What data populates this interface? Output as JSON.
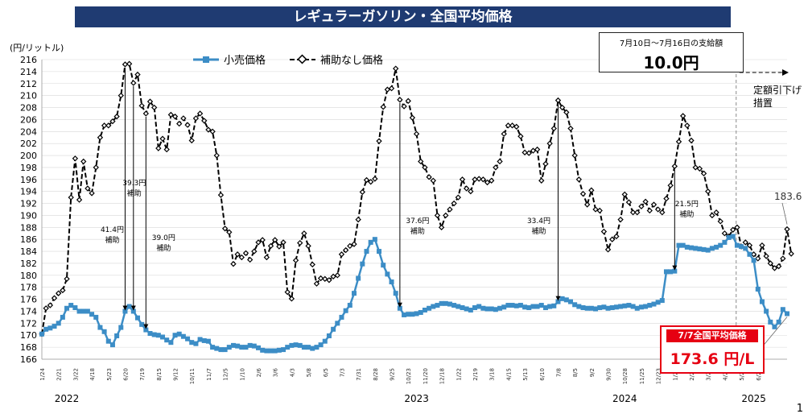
{
  "header": {
    "title": "レギュラーガソリン・全国平均価格"
  },
  "subsidy_box": {
    "line1": "7月10日～7月16日の支給額",
    "amount": "10.0円"
  },
  "price_box": {
    "heading": "7/7全国平均価格",
    "value": "173.6 円/L"
  },
  "page_number": "1",
  "colors": {
    "retail": "#3c8dc6",
    "no_subsidy": "#000000",
    "title_bg": "#1f3b72",
    "highlight": "#e60012"
  },
  "chart_data": {
    "type": "line",
    "ylabel": "(円/リットル)",
    "ylim": [
      166,
      216
    ],
    "y_ticks": [
      166,
      168,
      170,
      172,
      174,
      176,
      178,
      180,
      182,
      184,
      186,
      188,
      190,
      192,
      194,
      196,
      198,
      200,
      202,
      204,
      206,
      208,
      210,
      212,
      214,
      216
    ],
    "x_ticks": [
      {
        "i": 0,
        "label": "1/24"
      },
      {
        "i": 4,
        "label": "2/21"
      },
      {
        "i": 8,
        "label": "3/22"
      },
      {
        "i": 12,
        "label": "4/18"
      },
      {
        "i": 16,
        "label": "5/23"
      },
      {
        "i": 20,
        "label": "6/20"
      },
      {
        "i": 24,
        "label": "7/19"
      },
      {
        "i": 28,
        "label": "8/15"
      },
      {
        "i": 32,
        "label": "9/12"
      },
      {
        "i": 36,
        "label": "10/11"
      },
      {
        "i": 40,
        "label": "11/7"
      },
      {
        "i": 44,
        "label": "12/5"
      },
      {
        "i": 48,
        "label": "1/10"
      },
      {
        "i": 52,
        "label": "2/6"
      },
      {
        "i": 56,
        "label": "3/6"
      },
      {
        "i": 60,
        "label": "4/3"
      },
      {
        "i": 64,
        "label": "5/8"
      },
      {
        "i": 68,
        "label": "6/5"
      },
      {
        "i": 72,
        "label": "7/3"
      },
      {
        "i": 76,
        "label": "7/31"
      },
      {
        "i": 80,
        "label": "8/28"
      },
      {
        "i": 84,
        "label": "9/25"
      },
      {
        "i": 88,
        "label": "10/23"
      },
      {
        "i": 92,
        "label": "11/20"
      },
      {
        "i": 96,
        "label": "12/18"
      },
      {
        "i": 100,
        "label": "1/22"
      },
      {
        "i": 104,
        "label": "2/19"
      },
      {
        "i": 108,
        "label": "3/18"
      },
      {
        "i": 112,
        "label": "4/15"
      },
      {
        "i": 116,
        "label": "5/13"
      },
      {
        "i": 120,
        "label": "6/10"
      },
      {
        "i": 124,
        "label": "7/8"
      },
      {
        "i": 128,
        "label": "8/5"
      },
      {
        "i": 132,
        "label": "9/2"
      },
      {
        "i": 136,
        "label": "9/30"
      },
      {
        "i": 140,
        "label": "10/28"
      },
      {
        "i": 144,
        "label": "11/25"
      },
      {
        "i": 148,
        "label": "12/23"
      },
      {
        "i": 152,
        "label": "1/27"
      },
      {
        "i": 156,
        "label": "2/25"
      },
      {
        "i": 160,
        "label": "3/24"
      },
      {
        "i": 164,
        "label": "4/21"
      },
      {
        "i": 168,
        "label": "5/26"
      },
      {
        "i": 172,
        "label": "6/23"
      }
    ],
    "years": [
      {
        "i": 6,
        "label": "2022"
      },
      {
        "i": 90,
        "label": "2023"
      },
      {
        "i": 140,
        "label": "2024"
      },
      {
        "i": 171,
        "label": "2025"
      }
    ],
    "series": [
      {
        "name": "小売価格",
        "values": [
          170.2,
          171.0,
          171.2,
          171.5,
          172.0,
          173.0,
          174.5,
          175.0,
          174.6,
          174.0,
          174.0,
          174.0,
          173.5,
          173.0,
          171.3,
          170.6,
          169.0,
          168.4,
          169.9,
          171.3,
          174.0,
          174.8,
          174.0,
          172.9,
          171.8,
          170.9,
          170.3,
          170.1,
          170.0,
          169.7,
          169.2,
          168.8,
          170.0,
          170.2,
          169.8,
          169.4,
          168.8,
          168.6,
          169.3,
          169.1,
          169.0,
          168.0,
          167.8,
          167.6,
          167.6,
          168.0,
          168.3,
          168.2,
          168.0,
          168.0,
          168.3,
          168.2,
          167.9,
          167.5,
          167.4,
          167.4,
          167.4,
          167.5,
          167.6,
          168.0,
          168.3,
          168.4,
          168.3,
          168.0,
          168.0,
          167.8,
          168.0,
          168.4,
          169.0,
          169.9,
          171.0,
          172.0,
          173.0,
          174.1,
          175.0,
          177.0,
          179.5,
          181.9,
          184.0,
          185.5,
          186.0,
          184.0,
          181.7,
          180.2,
          178.9,
          177.0,
          174.5,
          173.4,
          173.5,
          173.5,
          173.6,
          173.8,
          174.2,
          174.5,
          174.8,
          175.0,
          175.3,
          175.3,
          175.2,
          175.0,
          174.8,
          174.6,
          174.4,
          174.2,
          174.6,
          174.8,
          174.5,
          174.4,
          174.4,
          174.3,
          174.5,
          174.7,
          175.0,
          175.0,
          174.9,
          175.0,
          174.7,
          174.6,
          174.8,
          174.8,
          175.0,
          174.6,
          174.8,
          174.9,
          175.6,
          176.1,
          175.9,
          175.6,
          175.1,
          174.8,
          174.6,
          174.5,
          174.5,
          174.4,
          174.6,
          174.7,
          174.5,
          174.6,
          174.7,
          174.8,
          174.9,
          175.0,
          174.8,
          174.5,
          174.7,
          174.8,
          175.0,
          175.2,
          175.5,
          175.8,
          180.6,
          180.6,
          180.7,
          185.0,
          185.0,
          184.7,
          184.6,
          184.5,
          184.4,
          184.3,
          184.2,
          184.5,
          184.7,
          185.0,
          185.5,
          186.3,
          186.5,
          185.0,
          184.8,
          184.5,
          183.5,
          182.5,
          177.7,
          175.6,
          174.0,
          172.2,
          171.4,
          172.2,
          174.3,
          173.6
        ]
      },
      {
        "name": "補助なし価格",
        "values": [
          170.2,
          174.5,
          175.0,
          176.2,
          177.0,
          177.5,
          179.4,
          193.0,
          199.5,
          192.6,
          199.0,
          194.5,
          193.7,
          198.0,
          203.0,
          205.0,
          205.0,
          205.7,
          206.5,
          210.0,
          215.2,
          215.3,
          212.1,
          213.5,
          208.3,
          207.0,
          209.0,
          208.0,
          201.2,
          202.8,
          201.0,
          206.8,
          206.5,
          205.3,
          206.2,
          205.1,
          202.5,
          206.2,
          207.0,
          205.8,
          204.3,
          204.0,
          200.0,
          193.4,
          187.8,
          187.2,
          181.9,
          183.5,
          183.0,
          183.7,
          182.6,
          184.0,
          185.5,
          185.9,
          183.0,
          184.9,
          185.9,
          184.8,
          185.5,
          177.2,
          176.1,
          182.5,
          185.4,
          187.0,
          184.9,
          181.8,
          178.6,
          179.5,
          179.4,
          179.2,
          179.8,
          180.0,
          183.5,
          184.2,
          184.9,
          185.2,
          189.3,
          193.9,
          195.9,
          195.6,
          196.1,
          202.4,
          208.1,
          211.0,
          211.2,
          214.5,
          209.3,
          208.2,
          209.1,
          206.3,
          203.6,
          199.0,
          198.0,
          196.4,
          195.8,
          190.0,
          188.0,
          190.0,
          191.0,
          192.0,
          193.0,
          196.0,
          194.5,
          194.0,
          196.0,
          196.1,
          196.0,
          195.5,
          195.8,
          198.0,
          199.0,
          203.6,
          205.0,
          205.0,
          204.8,
          203.2,
          200.5,
          200.4,
          200.8,
          201.0,
          195.8,
          198.6,
          202.0,
          204.5,
          209.2,
          208.0,
          207.2,
          204.5,
          200.0,
          196.0,
          193.6,
          191.8,
          194.2,
          191.0,
          190.8,
          187.3,
          184.3,
          186.0,
          186.5,
          189.3,
          193.5,
          192.2,
          190.5,
          190.5,
          191.5,
          192.3,
          190.8,
          191.8,
          191.0,
          190.5,
          192.8,
          195.0,
          198.2,
          202.3,
          206.6,
          205.0,
          202.5,
          198.0,
          197.8,
          197.0,
          194.0,
          190.0,
          190.5,
          189.0,
          187.0,
          186.5,
          187.6,
          188.0,
          184.8,
          185.5,
          185.0,
          183.5,
          182.8,
          185.0,
          183.2,
          182.0,
          181.2,
          181.5,
          182.8,
          187.7,
          183.6
        ]
      }
    ],
    "annotations": [
      {
        "i": 20,
        "text": "41.4円\n補助"
      },
      {
        "i": 22,
        "text": "39.3円\n補助"
      },
      {
        "i": 25,
        "text": "39.0円\n補助"
      },
      {
        "i": 86,
        "text": "37.6円\n補助"
      },
      {
        "i": 124,
        "text": "33.4円\n補助"
      },
      {
        "i": 152,
        "text": "21.5円\n補助"
      }
    ],
    "end_label": "183.6",
    "policy_note": [
      "定額引下げ",
      "措置"
    ],
    "policy_i": 166
  }
}
